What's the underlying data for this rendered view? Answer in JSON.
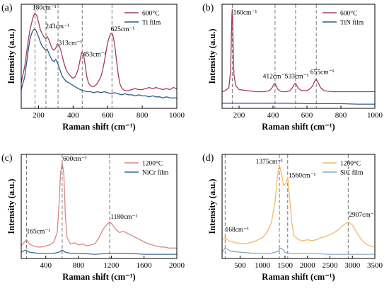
{
  "chart_data": [
    {
      "type": "line",
      "panel_label": "(a)",
      "xlabel": "Raman shift (cm⁻¹)",
      "ylabel": "Intensity (a.u.)",
      "xlim": [
        100,
        1000
      ],
      "xticks": [
        200,
        400,
        600,
        800,
        1000
      ],
      "ylim": [
        0,
        1
      ],
      "legend_position": "top-right",
      "series": [
        {
          "name": "600°C",
          "color": "#a23b5e",
          "x": [
            100,
            120,
            140,
            150,
            160,
            170,
            175,
            180,
            185,
            190,
            200,
            210,
            220,
            230,
            240,
            250,
            260,
            270,
            280,
            290,
            300,
            310,
            320,
            330,
            340,
            350,
            360,
            370,
            380,
            390,
            400,
            410,
            420,
            430,
            440,
            450,
            460,
            470,
            480,
            490,
            500,
            510,
            520,
            530,
            540,
            550,
            560,
            570,
            580,
            590,
            600,
            610,
            620,
            625,
            630,
            640,
            650,
            660,
            670,
            680,
            690,
            700,
            720,
            740,
            760,
            780,
            800,
            820,
            840,
            860,
            880,
            900,
            920,
            940,
            960,
            980,
            1000
          ],
          "y": [
            0.25,
            0.4,
            0.64,
            0.75,
            0.82,
            0.88,
            0.9,
            0.91,
            0.9,
            0.89,
            0.83,
            0.76,
            0.72,
            0.69,
            0.67,
            0.69,
            0.66,
            0.61,
            0.57,
            0.56,
            0.58,
            0.62,
            0.6,
            0.55,
            0.48,
            0.42,
            0.37,
            0.34,
            0.32,
            0.3,
            0.29,
            0.3,
            0.33,
            0.38,
            0.46,
            0.54,
            0.52,
            0.42,
            0.3,
            0.24,
            0.22,
            0.21,
            0.21,
            0.22,
            0.24,
            0.27,
            0.3,
            0.36,
            0.44,
            0.54,
            0.63,
            0.69,
            0.72,
            0.72,
            0.7,
            0.62,
            0.48,
            0.34,
            0.24,
            0.2,
            0.18,
            0.17,
            0.17,
            0.18,
            0.19,
            0.18,
            0.18,
            0.19,
            0.2,
            0.19,
            0.2,
            0.19,
            0.18,
            0.19,
            0.18,
            0.2,
            0.19
          ]
        },
        {
          "name": "Ti film",
          "color": "#2c5b8a",
          "x": [
            100,
            120,
            140,
            150,
            160,
            170,
            175,
            180,
            185,
            190,
            200,
            210,
            220,
            230,
            240,
            250,
            260,
            270,
            280,
            290,
            300,
            310,
            320,
            330,
            340,
            350,
            360,
            380,
            400,
            420,
            440,
            460,
            480,
            500,
            520,
            540,
            560,
            580,
            600,
            620,
            640,
            660,
            680,
            700,
            720,
            740,
            760,
            780,
            800,
            820,
            840,
            860,
            880,
            900,
            920,
            940,
            960,
            980,
            1000
          ],
          "y": [
            0.18,
            0.3,
            0.55,
            0.66,
            0.72,
            0.75,
            0.76,
            0.76,
            0.75,
            0.73,
            0.69,
            0.64,
            0.6,
            0.58,
            0.56,
            0.57,
            0.53,
            0.49,
            0.46,
            0.45,
            0.47,
            0.44,
            0.39,
            0.34,
            0.3,
            0.28,
            0.26,
            0.24,
            0.22,
            0.2,
            0.18,
            0.17,
            0.16,
            0.16,
            0.15,
            0.16,
            0.15,
            0.16,
            0.15,
            0.14,
            0.15,
            0.14,
            0.13,
            0.14,
            0.13,
            0.13,
            0.12,
            0.13,
            0.12,
            0.12,
            0.11,
            0.12,
            0.11,
            0.11,
            0.1,
            0.11,
            0.1,
            0.1,
            0.1
          ]
        }
      ],
      "dashed_lines": [
        180,
        243,
        313,
        453,
        625
      ],
      "annotations": [
        {
          "text": "180cm⁻¹",
          "x": 165,
          "y": 0.95
        },
        {
          "text": "243cm⁻¹",
          "x": 240,
          "y": 0.77
        },
        {
          "text": "313cm⁻¹",
          "x": 315,
          "y": 0.61
        },
        {
          "text": "453cm⁻¹",
          "x": 455,
          "y": 0.5
        },
        {
          "text": "625cm⁻¹",
          "x": 618,
          "y": 0.74
        }
      ]
    },
    {
      "type": "line",
      "panel_label": "(b)",
      "xlabel": "Raman shift (cm⁻¹)",
      "ylabel": "Intensity (a.u.)",
      "xlim": [
        100,
        1000
      ],
      "xticks": [
        200,
        400,
        600,
        800,
        1000
      ],
      "ylim": [
        0,
        1
      ],
      "legend_position": "top-right",
      "series": [
        {
          "name": "600°C",
          "color": "#a23b5e",
          "x": [
            100,
            120,
            140,
            150,
            155,
            158,
            160,
            162,
            165,
            170,
            180,
            200,
            250,
            300,
            350,
            380,
            395,
            405,
            412,
            420,
            430,
            450,
            480,
            500,
            515,
            525,
            533,
            540,
            550,
            570,
            600,
            620,
            635,
            645,
            655,
            665,
            680,
            700,
            750,
            800,
            850,
            900,
            950,
            1000
          ],
          "y": [
            0.16,
            0.17,
            0.2,
            0.35,
            0.7,
            0.9,
            0.95,
            0.88,
            0.6,
            0.32,
            0.22,
            0.18,
            0.17,
            0.16,
            0.16,
            0.17,
            0.2,
            0.23,
            0.24,
            0.21,
            0.18,
            0.16,
            0.16,
            0.17,
            0.2,
            0.23,
            0.24,
            0.22,
            0.19,
            0.17,
            0.17,
            0.19,
            0.22,
            0.26,
            0.28,
            0.25,
            0.2,
            0.17,
            0.16,
            0.16,
            0.16,
            0.16,
            0.16,
            0.16
          ]
        },
        {
          "name": "TiN film",
          "color": "#2c5b8a",
          "x": [
            100,
            200,
            300,
            400,
            500,
            600,
            700,
            800,
            900,
            1000
          ],
          "y": [
            0.05,
            0.05,
            0.05,
            0.05,
            0.05,
            0.045,
            0.045,
            0.045,
            0.04,
            0.04
          ]
        }
      ],
      "dashed_lines": [
        160,
        412,
        533,
        655
      ],
      "annotations": [
        {
          "text": "160cm⁻¹",
          "x": 165,
          "y": 0.9
        },
        {
          "text": "412cm⁻¹",
          "x": 340,
          "y": 0.29
        },
        {
          "text": "533cm⁻¹",
          "x": 470,
          "y": 0.29
        },
        {
          "text": "655cm⁻¹",
          "x": 620,
          "y": 0.33
        }
      ]
    },
    {
      "type": "line",
      "panel_label": "(c)",
      "xlabel": "Raman shift (cm⁻¹)",
      "ylabel": "Intensity (a.u.)",
      "xlim": [
        100,
        2000
      ],
      "xticks": [
        400,
        800,
        1200,
        1600,
        2000
      ],
      "ylim": [
        0,
        1
      ],
      "legend_position": "top-right",
      "series": [
        {
          "name": "1200°C",
          "color": "#d98585",
          "x": [
            100,
            140,
            165,
            200,
            250,
            300,
            350,
            400,
            450,
            500,
            540,
            560,
            580,
            600,
            620,
            640,
            660,
            700,
            750,
            800,
            850,
            900,
            950,
            1000,
            1050,
            1100,
            1150,
            1180,
            1210,
            1250,
            1300,
            1350,
            1400,
            1450,
            1500,
            1550,
            1600,
            1650,
            1700,
            1750,
            1800,
            1850,
            1900,
            1950,
            2000
          ],
          "y": [
            0.12,
            0.16,
            0.18,
            0.14,
            0.12,
            0.11,
            0.11,
            0.12,
            0.13,
            0.16,
            0.25,
            0.5,
            0.82,
            0.92,
            0.82,
            0.4,
            0.2,
            0.14,
            0.15,
            0.13,
            0.14,
            0.12,
            0.13,
            0.14,
            0.2,
            0.28,
            0.33,
            0.35,
            0.33,
            0.28,
            0.25,
            0.26,
            0.24,
            0.22,
            0.2,
            0.18,
            0.16,
            0.14,
            0.13,
            0.12,
            0.11,
            0.11,
            0.1,
            0.1,
            0.1
          ]
        },
        {
          "name": "NiCr film",
          "color": "#3b6b9a",
          "x": [
            100,
            150,
            200,
            300,
            400,
            500,
            560,
            600,
            640,
            700,
            800,
            1000,
            1200,
            1400,
            1600,
            1800,
            2000
          ],
          "y": [
            0.06,
            0.08,
            0.06,
            0.05,
            0.05,
            0.05,
            0.06,
            0.08,
            0.06,
            0.05,
            0.05,
            0.04,
            0.05,
            0.05,
            0.04,
            0.04,
            0.04
          ]
        }
      ],
      "dashed_lines": [
        165,
        600,
        1180
      ],
      "annotations": [
        {
          "text": "165cm⁻¹",
          "x": 165,
          "y": 0.24
        },
        {
          "text": "600cm⁻¹",
          "x": 610,
          "y": 0.94
        },
        {
          "text": "1180cm⁻¹",
          "x": 1190,
          "y": 0.38
        }
      ]
    },
    {
      "type": "line",
      "panel_label": "(d)",
      "xlabel": "Raman shift (cm⁻¹)",
      "ylabel": "Intensity (a.u.)",
      "xlim": [
        100,
        3500
      ],
      "xticks": [
        500,
        1000,
        1500,
        2000,
        2500,
        3000,
        3500
      ],
      "ylim": [
        0,
        1
      ],
      "legend_position": "top-right",
      "series": [
        {
          "name": "1200°C",
          "color": "#f3b96a",
          "x": [
            100,
            168,
            250,
            400,
            600,
            800,
            1000,
            1100,
            1200,
            1280,
            1330,
            1375,
            1420,
            1470,
            1520,
            1560,
            1600,
            1650,
            1700,
            1800,
            1900,
            2000,
            2100,
            2200,
            2300,
            2400,
            2500,
            2600,
            2700,
            2800,
            2907,
            3000,
            3100,
            3200,
            3300,
            3400,
            3500
          ],
          "y": [
            0.18,
            0.2,
            0.17,
            0.15,
            0.14,
            0.16,
            0.2,
            0.25,
            0.35,
            0.55,
            0.78,
            0.9,
            0.82,
            0.7,
            0.72,
            0.78,
            0.6,
            0.35,
            0.22,
            0.18,
            0.17,
            0.18,
            0.17,
            0.18,
            0.2,
            0.21,
            0.23,
            0.25,
            0.28,
            0.32,
            0.35,
            0.32,
            0.25,
            0.18,
            0.14,
            0.12,
            0.11
          ]
        },
        {
          "name": "SiC film",
          "color": "#8fa6b7",
          "x": [
            100,
            168,
            300,
            500,
            800,
            1000,
            1200,
            1350,
            1400,
            1450,
            1500,
            1600,
            1800,
            2000,
            2500,
            3000,
            3500
          ],
          "y": [
            0.06,
            0.1,
            0.07,
            0.06,
            0.05,
            0.05,
            0.05,
            0.07,
            0.1,
            0.09,
            0.06,
            0.05,
            0.05,
            0.05,
            0.04,
            0.04,
            0.04
          ]
        }
      ],
      "dashed_lines": [
        168,
        1375,
        1560,
        2907
      ],
      "annotations": [
        {
          "text": "168cm⁻¹",
          "x": 170,
          "y": 0.26
        },
        {
          "text": "1375cm⁻¹",
          "x": 850,
          "y": 0.91
        },
        {
          "text": "1560cm⁻¹",
          "x": 1580,
          "y": 0.78
        },
        {
          "text": "2907cm⁻¹",
          "x": 2920,
          "y": 0.4
        }
      ]
    }
  ]
}
